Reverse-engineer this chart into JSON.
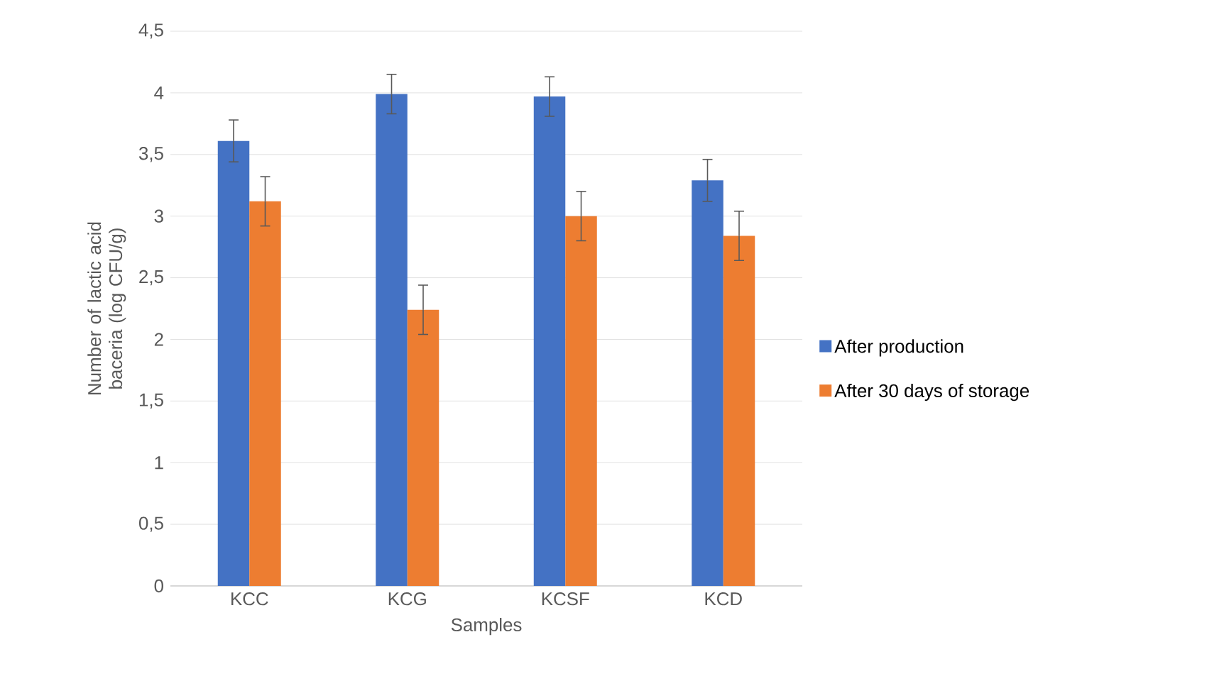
{
  "chart_data": {
    "type": "bar",
    "xlabel": "Samples",
    "ylabel": "Number of lactic acid baceria (log CFU/g)",
    "categories": [
      "KCC",
      "KCG",
      "KCSF",
      "KCD"
    ],
    "series": [
      {
        "name": "After production",
        "color": "#4472c4",
        "values": [
          3.61,
          3.99,
          3.97,
          3.29
        ],
        "errors": [
          0.17,
          0.16,
          0.16,
          0.17
        ]
      },
      {
        "name": "After 30 days of storage",
        "color": "#ed7d31",
        "values": [
          3.12,
          2.24,
          3.0,
          2.84
        ],
        "errors": [
          0.2,
          0.2,
          0.2,
          0.2
        ]
      }
    ],
    "ylim": [
      0,
      4.5
    ],
    "yticks": [
      0,
      {
        "value": 0.5,
        "label": "0,5"
      },
      1,
      {
        "value": 1.5,
        "label": "1,5"
      },
      2,
      {
        "value": 2.5,
        "label": "2,5"
      },
      3,
      {
        "value": 3.5,
        "label": "3,5"
      },
      4,
      {
        "value": 4.5,
        "label": "4,5"
      }
    ],
    "grid": "y",
    "legend": "right"
  }
}
